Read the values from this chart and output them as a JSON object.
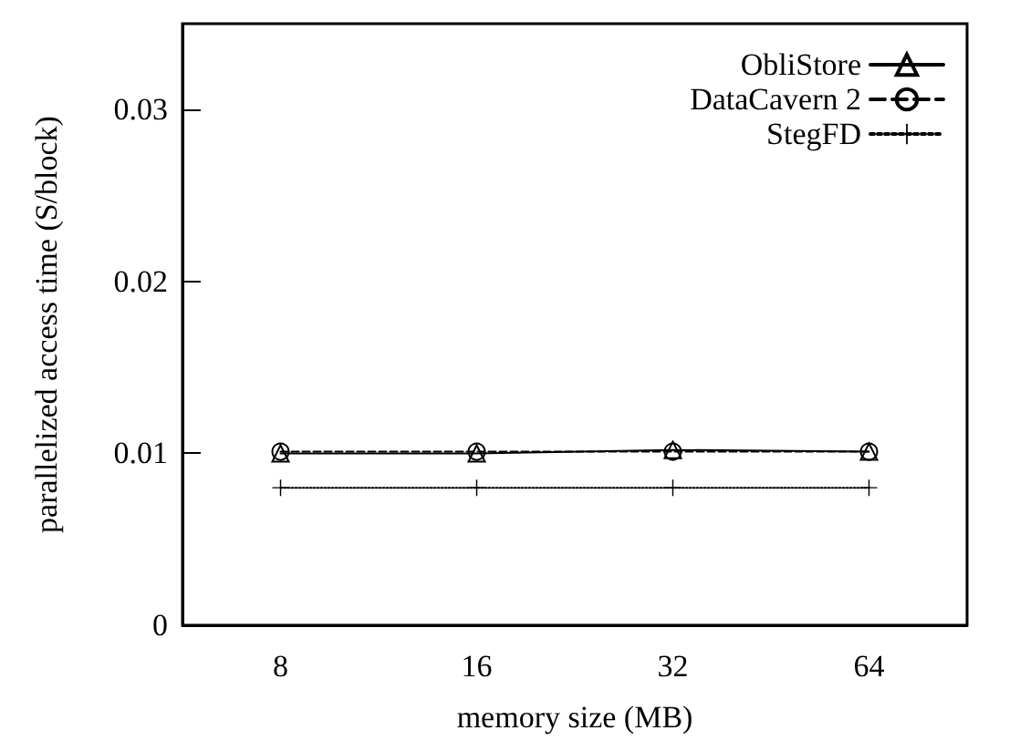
{
  "chart_data": {
    "type": "line",
    "xlabel": "memory size (MB)",
    "ylabel": "parallelized access time (S/block)",
    "categories": [
      "8",
      "16",
      "32",
      "64"
    ],
    "series": [
      {
        "name": "ObliStore",
        "color": "#000000",
        "marker": "triangle",
        "line_style": "solid",
        "values": [
          0.01,
          0.01,
          0.0102,
          0.0101
        ]
      },
      {
        "name": "DataCavern 2",
        "color": "#000000",
        "marker": "circle",
        "line_style": "dashed",
        "values": [
          0.0101,
          0.0101,
          0.0101,
          0.0101
        ]
      },
      {
        "name": "StegFD",
        "color": "#000000",
        "marker": "cross",
        "line_style": "dotted",
        "values": [
          0.008,
          0.008,
          0.008,
          0.008
        ]
      }
    ],
    "ylim": [
      0,
      0.035
    ],
    "yticks": [
      0,
      0.01,
      0.02,
      0.03
    ],
    "grid": false,
    "legend": "top right"
  }
}
